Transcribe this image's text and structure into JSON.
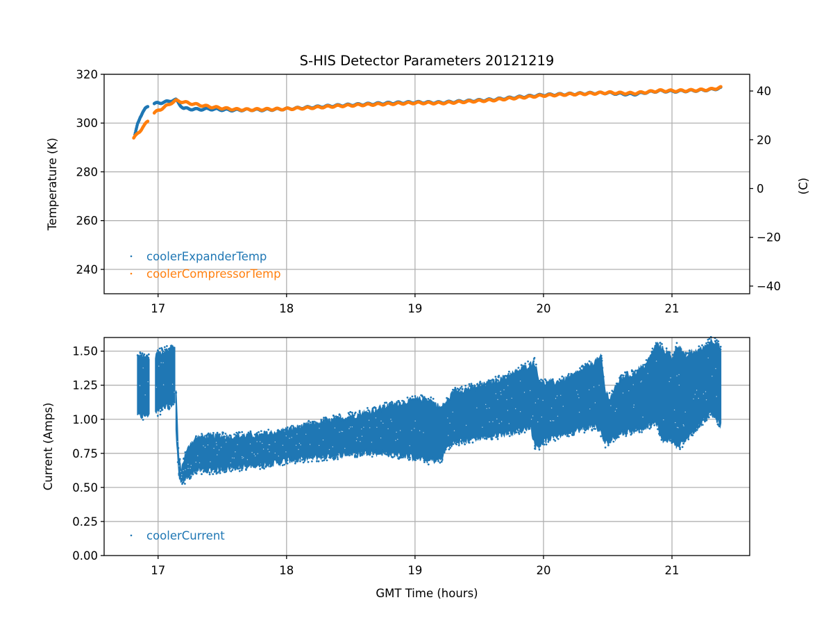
{
  "chart_data": [
    {
      "type": "scatter",
      "title": "S-HIS Detector Parameters 20121219",
      "xlabel": "",
      "ylabel": "Temperature (K)",
      "ylabel_right": "(C)",
      "xlim": [
        16.58,
        21.605
      ],
      "ylim": [
        230,
        320
      ],
      "xticks": [
        17,
        18,
        19,
        20,
        21
      ],
      "xtick_labels": [
        "17",
        "18",
        "19",
        "20",
        "21"
      ],
      "yticks": [
        240,
        260,
        280,
        300,
        320
      ],
      "ytick_labels": [
        "240",
        "260",
        "280",
        "300",
        "320"
      ],
      "yticks_right": [
        -40,
        -20,
        0,
        20,
        40
      ],
      "ytick_right_labels": [
        "−40",
        "−20",
        "0",
        "20",
        "40"
      ],
      "grid": true,
      "legend_position": "lower-left",
      "series": [
        {
          "name": "coolerExpanderTemp",
          "color": "#1f77b4",
          "segments": [
            {
              "x": [
                16.82,
                16.84,
                16.86,
                16.88,
                16.9,
                16.92
              ],
              "y": [
                295.0,
                299.5,
                302.5,
                304.5,
                305.8,
                306.6
              ]
            },
            {
              "x": [
                16.97,
                17.0,
                17.05,
                17.1,
                17.14,
                17.17,
                17.2,
                17.3,
                17.4,
                17.5,
                17.6,
                17.7,
                17.8,
                17.9,
                18.0,
                18.2,
                18.4,
                18.6,
                18.8,
                19.0,
                19.2,
                19.4,
                19.6,
                19.8,
                20.0,
                20.2,
                20.4,
                20.5,
                20.6,
                20.7,
                20.8,
                20.9,
                21.0,
                21.1,
                21.2,
                21.3,
                21.38
              ],
              "y": [
                307.8,
                308.3,
                308.5,
                309.2,
                309.5,
                307.5,
                306.0,
                305.6,
                305.8,
                305.5,
                305.3,
                305.5,
                305.4,
                305.6,
                305.8,
                306.5,
                307.2,
                307.7,
                308.2,
                308.5,
                308.4,
                309.0,
                309.6,
                310.6,
                311.5,
                311.9,
                312.3,
                312.4,
                312.0,
                311.8,
                312.6,
                313.2,
                313.0,
                313.2,
                313.4,
                313.7,
                314.4
              ]
            }
          ]
        },
        {
          "name": "coolerCompressorTemp",
          "color": "#ff7f0e",
          "segments": [
            {
              "x": [
                16.81,
                16.83,
                16.86,
                16.88,
                16.9,
                16.92
              ],
              "y": [
                293.8,
                295.0,
                296.8,
                298.3,
                299.5,
                300.6
              ]
            },
            {
              "x": [
                16.97,
                17.0,
                17.05,
                17.1,
                17.14,
                17.2,
                17.3,
                17.4,
                17.5,
                17.6,
                17.7,
                17.8,
                17.9,
                18.0,
                18.2,
                18.4,
                18.6,
                18.8,
                19.0,
                19.2,
                19.4,
                19.6,
                19.8,
                20.0,
                20.2,
                20.4,
                20.5,
                20.6,
                20.7,
                20.8,
                20.9,
                21.0,
                21.1,
                21.2,
                21.3,
                21.38
              ],
              "y": [
                304.0,
                305.2,
                306.5,
                308.2,
                309.2,
                308.6,
                307.6,
                306.7,
                306.1,
                305.6,
                305.5,
                305.6,
                305.7,
                305.8,
                306.3,
                307.0,
                307.5,
                307.9,
                308.3,
                308.2,
                308.8,
                309.4,
                310.4,
                311.3,
                311.8,
                312.2,
                312.5,
                312.3,
                312.2,
                312.7,
                313.3,
                313.2,
                313.3,
                313.5,
                313.8,
                314.6
              ]
            }
          ]
        }
      ]
    },
    {
      "type": "scatter",
      "title": "",
      "xlabel": "GMT Time (hours)",
      "ylabel": "Current (Amps)",
      "xlim": [
        16.58,
        21.605
      ],
      "ylim": [
        0.0,
        1.6
      ],
      "xticks": [
        17,
        18,
        19,
        20,
        21
      ],
      "xtick_labels": [
        "17",
        "18",
        "19",
        "20",
        "21"
      ],
      "yticks": [
        0.0,
        0.25,
        0.5,
        0.75,
        1.0,
        1.25,
        1.5
      ],
      "ytick_labels": [
        "0.00",
        "0.25",
        "0.50",
        "0.75",
        "1.00",
        "1.25",
        "1.50"
      ],
      "grid": true,
      "legend_position": "lower-left",
      "series": [
        {
          "name": "coolerCurrent",
          "color": "#1f77b4",
          "envelope_segments": [
            {
              "x": [
                16.84,
                16.86,
                16.9,
                16.93
              ],
              "low": [
                1.04,
                1.02,
                1.03,
                1.04
              ],
              "high": [
                1.46,
                1.46,
                1.45,
                1.45
              ]
            },
            {
              "x": [
                16.98,
                17.02,
                17.06,
                17.1,
                17.13
              ],
              "low": [
                1.05,
                1.07,
                1.09,
                1.11,
                1.13
              ],
              "high": [
                1.47,
                1.49,
                1.5,
                1.52,
                1.54
              ]
            },
            {
              "x": [
                17.14,
                17.16,
                17.18,
                17.2,
                17.25,
                17.3,
                17.4,
                17.5,
                17.6,
                17.7,
                17.8,
                17.9,
                18.0,
                18.1,
                18.2,
                18.3,
                18.4,
                18.5,
                18.6,
                18.7,
                18.8,
                18.9,
                19.0,
                19.1,
                19.2,
                19.25,
                19.3,
                19.4,
                19.5,
                19.6,
                19.7,
                19.8,
                19.9,
                19.93,
                19.96,
                20.0,
                20.1,
                20.2,
                20.3,
                20.4,
                20.45,
                20.48,
                20.52,
                20.6,
                20.7,
                20.8,
                20.88,
                20.92,
                21.0,
                21.05,
                21.1,
                21.15,
                21.2,
                21.25,
                21.3,
                21.35,
                21.38
              ],
              "low": [
                0.9,
                0.62,
                0.52,
                0.55,
                0.6,
                0.63,
                0.63,
                0.64,
                0.65,
                0.66,
                0.67,
                0.68,
                0.7,
                0.71,
                0.72,
                0.73,
                0.74,
                0.75,
                0.76,
                0.76,
                0.75,
                0.74,
                0.72,
                0.7,
                0.71,
                0.8,
                0.83,
                0.85,
                0.87,
                0.88,
                0.9,
                0.92,
                0.95,
                0.82,
                0.8,
                0.84,
                0.88,
                0.91,
                0.93,
                0.96,
                0.9,
                0.82,
                0.85,
                0.9,
                0.92,
                0.95,
                0.98,
                0.85,
                0.86,
                0.8,
                0.85,
                0.9,
                0.95,
                1.0,
                1.05,
                1.0,
                0.95
              ],
              "high": [
                1.2,
                0.72,
                0.62,
                0.7,
                0.82,
                0.86,
                0.87,
                0.87,
                0.87,
                0.88,
                0.88,
                0.9,
                0.92,
                0.94,
                0.96,
                0.98,
                1.0,
                1.02,
                1.04,
                1.07,
                1.1,
                1.12,
                1.14,
                1.15,
                1.08,
                1.13,
                1.2,
                1.22,
                1.24,
                1.27,
                1.3,
                1.35,
                1.4,
                1.42,
                1.3,
                1.26,
                1.27,
                1.3,
                1.36,
                1.42,
                1.45,
                1.2,
                1.15,
                1.3,
                1.33,
                1.4,
                1.55,
                1.52,
                1.45,
                1.55,
                1.45,
                1.48,
                1.5,
                1.52,
                1.57,
                1.57,
                1.5
              ]
            }
          ]
        }
      ]
    }
  ]
}
